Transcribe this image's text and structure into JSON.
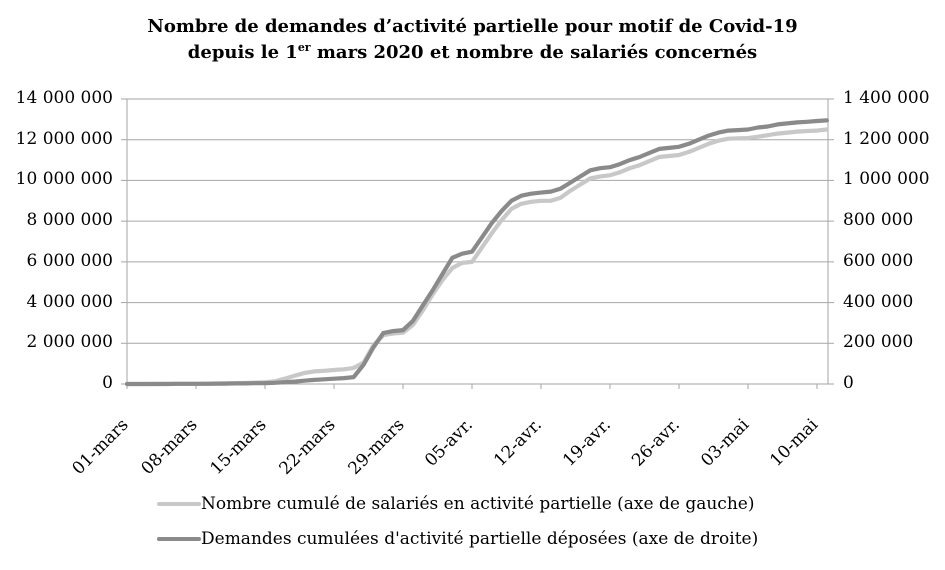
{
  "title": {
    "line1": "Nombre de demandes d’activité partielle pour motif de Covid-19",
    "line2_prefix": "depuis le 1",
    "line2_sup": "er",
    "line2_suffix": " mars 2020 et nombre de salariés concernés"
  },
  "chart_data": {
    "type": "line",
    "title": "Nombre de demandes d'activité partielle pour motif de Covid-19 depuis le 1er mars 2020 et nombre de salariés concernés",
    "grid": "horizontal",
    "legend_position": "bottom",
    "x_unit": "jours depuis le 01-mars-2020 (données quotidiennes cumulées, du 01-mars au 11-mai)",
    "axes": {
      "x": {
        "tick_labels": [
          "01-mars",
          "08-mars",
          "15-mars",
          "22-mars",
          "29-mars",
          "05-avr.",
          "12-avr.",
          "19-avr.",
          "26-avr.",
          "03-mai",
          "10-mai"
        ],
        "tick_day_indices": [
          0,
          7,
          14,
          21,
          28,
          35,
          42,
          49,
          56,
          63,
          70
        ],
        "range_days": [
          0,
          71
        ]
      },
      "y_left": {
        "min": 0,
        "max": 14000000,
        "tick_labels_top_to_bottom": [
          "14 000 000",
          "12 000 000",
          "10 000 000",
          "8 000 000",
          "6 000 000",
          "4 000 000",
          "2 000 000",
          "0"
        ]
      },
      "y_right": {
        "min": 0,
        "max": 1400000,
        "tick_labels_top_to_bottom": [
          "1 400 000",
          "1 200 000",
          "1 000 000",
          "800 000",
          "600 000",
          "400 000",
          "200 000",
          "0"
        ]
      }
    },
    "series": [
      {
        "name": "Nombre cumulé de salariés en activité partielle (axe de gauche)",
        "axis": "left",
        "color": "#c8c8c8",
        "values": [
          0,
          0,
          0,
          10000,
          10000,
          10000,
          10000,
          10000,
          20000,
          20000,
          30000,
          40000,
          50000,
          70000,
          90000,
          130000,
          260000,
          410000,
          540000,
          620000,
          650000,
          690000,
          720000,
          790000,
          1050000,
          1900000,
          2400000,
          2480000,
          2520000,
          2900000,
          3600000,
          4400000,
          5100000,
          5700000,
          5950000,
          6000000,
          6700000,
          7400000,
          8050000,
          8600000,
          8850000,
          8950000,
          9000000,
          9000000,
          9150000,
          9500000,
          9800000,
          10100000,
          10200000,
          10250000,
          10400000,
          10600000,
          10750000,
          10950000,
          11150000,
          11200000,
          11250000,
          11400000,
          11600000,
          11800000,
          11950000,
          12050000,
          12070000,
          12080000,
          12150000,
          12220000,
          12300000,
          12350000,
          12400000,
          12430000,
          12450000,
          12500000
        ]
      },
      {
        "name": "Demandes cumulées d'activité partielle déposées (axe de droite)",
        "axis": "right",
        "color": "#8a8a8a",
        "values": [
          0,
          0,
          0,
          0,
          0,
          1000,
          1000,
          1000,
          1000,
          2000,
          2000,
          3000,
          3000,
          4000,
          4000,
          6000,
          9000,
          12000,
          16000,
          20000,
          23000,
          26000,
          29000,
          34000,
          95000,
          180000,
          250000,
          260000,
          265000,
          310000,
          385000,
          460000,
          540000,
          620000,
          640000,
          650000,
          720000,
          790000,
          850000,
          900000,
          925000,
          935000,
          940000,
          945000,
          960000,
          990000,
          1020000,
          1050000,
          1060000,
          1065000,
          1080000,
          1100000,
          1115000,
          1135000,
          1155000,
          1160000,
          1165000,
          1180000,
          1200000,
          1220000,
          1235000,
          1245000,
          1247000,
          1250000,
          1260000,
          1265000,
          1275000,
          1280000,
          1285000,
          1288000,
          1292000,
          1295000
        ]
      }
    ]
  }
}
